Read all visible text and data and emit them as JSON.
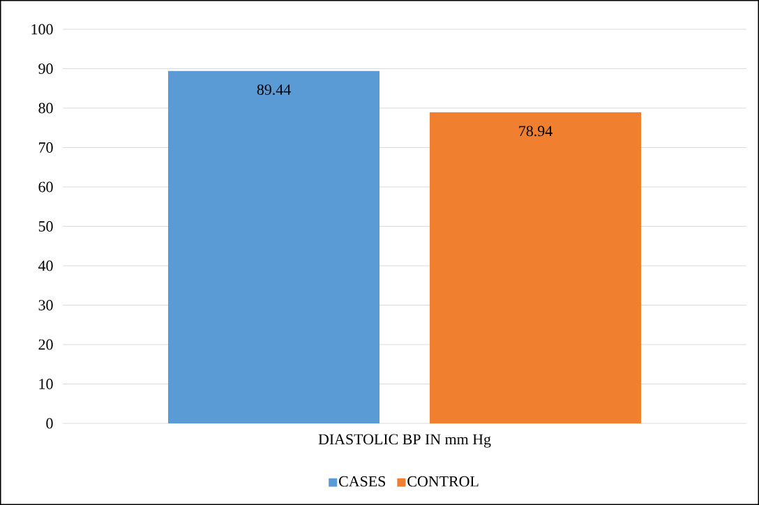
{
  "chart_data": {
    "type": "bar",
    "categories": [
      "DIASTOLIC BP IN mm Hg"
    ],
    "series": [
      {
        "name": "CASES",
        "color": "#5b9bd5",
        "values": [
          89.44
        ]
      },
      {
        "name": "CONTROL",
        "color": "#f07f2f",
        "values": [
          78.94
        ]
      }
    ],
    "ylim": [
      0,
      100
    ],
    "yticks": [
      0,
      10,
      20,
      30,
      40,
      50,
      60,
      70,
      80,
      90,
      100
    ],
    "grid": "y",
    "legend": "bottom",
    "data_labels": true
  }
}
